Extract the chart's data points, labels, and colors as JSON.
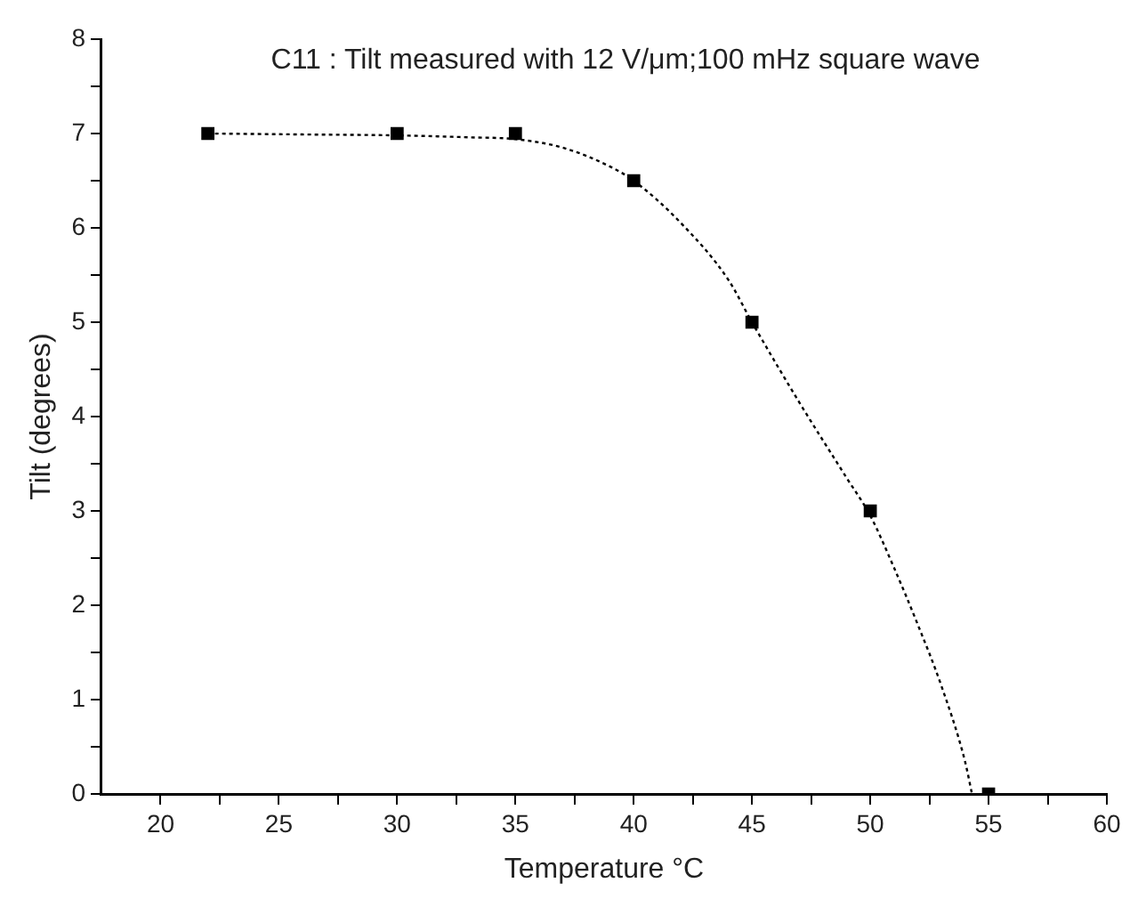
{
  "chart_data": {
    "type": "scatter",
    "title": "C11 : Tilt measured with 12 V/μm;100 mHz square wave",
    "xlabel": "Temperature °C",
    "ylabel": "Tilt (degrees)",
    "series": [
      {
        "type": "scatter",
        "color": "#000000",
        "marker": "square",
        "x": [
          22,
          30,
          35,
          40,
          45,
          50,
          55
        ],
        "values": [
          7,
          7,
          7,
          6.5,
          5,
          3,
          0
        ]
      },
      {
        "type": "line",
        "color": "#000000",
        "marker": "none",
        "line_style": "dotted",
        "x": [
          22,
          26,
          30,
          33,
          35,
          37,
          39,
          40,
          42,
          44,
          45,
          47,
          49,
          50,
          51,
          52,
          53,
          54,
          54.3
        ],
        "values": [
          7,
          6.99,
          6.98,
          6.96,
          6.94,
          6.85,
          6.65,
          6.5,
          6.05,
          5.45,
          5.0,
          4.15,
          3.35,
          2.95,
          2.4,
          1.8,
          1.15,
          0.35,
          0
        ]
      }
    ],
    "xlim": [
      17.5,
      60
    ],
    "ylim": [
      0,
      8
    ],
    "xticks": [
      20,
      {
        "value": 22.5,
        "label": null
      },
      25,
      {
        "value": 27.5,
        "label": null
      },
      30,
      {
        "value": 32.5,
        "label": null
      },
      35,
      {
        "value": 37.5,
        "label": null
      },
      40,
      {
        "value": 42.5,
        "label": null
      },
      45,
      {
        "value": 47.5,
        "label": null
      },
      50,
      {
        "value": 52.5,
        "label": null
      },
      55,
      {
        "value": 57.5,
        "label": null
      },
      60
    ],
    "yticks": [
      0,
      {
        "value": 0.5,
        "label": null
      },
      1,
      {
        "value": 1.5,
        "label": null
      },
      2,
      {
        "value": 2.5,
        "label": null
      },
      3,
      {
        "value": 3.5,
        "label": null
      },
      4,
      {
        "value": 4.5,
        "label": null
      },
      5,
      {
        "value": 5.5,
        "label": null
      },
      6,
      {
        "value": 6.5,
        "label": null
      },
      7,
      {
        "value": 7.5,
        "label": null
      },
      8
    ],
    "grid": false,
    "legend": false
  }
}
